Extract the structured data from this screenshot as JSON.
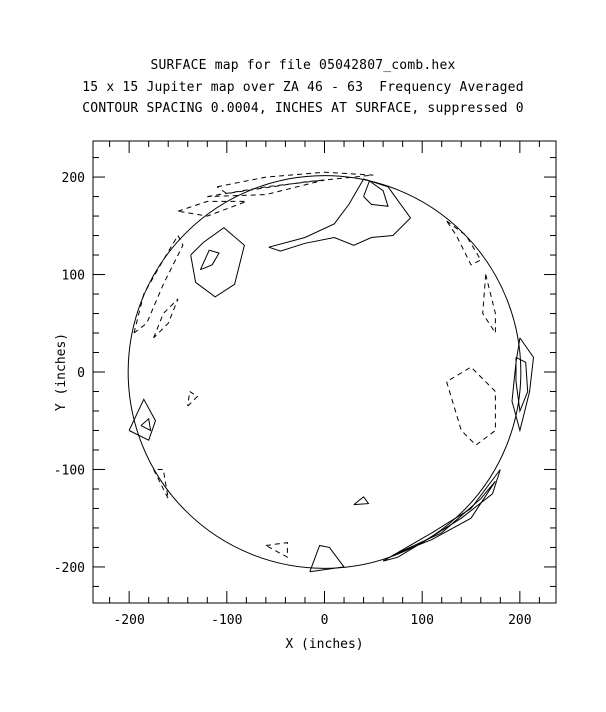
{
  "chart_data": {
    "type": "contour",
    "title": "SURFACE map for file 05042807_comb.hex",
    "subtitle": "15 x 15 Jupiter map over ZA 46 - 63  Frequency Averaged",
    "subtitle2": "CONTOUR SPACING 0.0004, INCHES AT SURFACE, suppressed 0",
    "xlabel": "X (inches)",
    "ylabel": "Y (inches)",
    "xlim": [
      -237,
      237
    ],
    "ylim": [
      -237,
      237
    ],
    "xticks": [
      -200,
      -100,
      0,
      100,
      200
    ],
    "yticks": [
      -200,
      -100,
      0,
      100,
      200
    ],
    "xtick_labels": [
      "-200",
      "-100",
      "0",
      "100",
      "200"
    ],
    "ytick_labels": [
      "-200",
      "-100",
      "0",
      "100",
      "200"
    ],
    "surface_radius": 201,
    "contour_spacing": 0.0004,
    "positive_contours": [
      [
        [
          -137,
          120
        ],
        [
          -124,
          133
        ],
        [
          -103,
          148
        ],
        [
          -82,
          130
        ],
        [
          -92,
          90
        ],
        [
          -112,
          77
        ],
        [
          -132,
          92
        ],
        [
          -137,
          120
        ]
      ],
      [
        [
          -127,
          105
        ],
        [
          -118,
          125
        ],
        [
          -108,
          122
        ],
        [
          -115,
          110
        ],
        [
          -127,
          105
        ]
      ],
      [
        [
          -57,
          128
        ],
        [
          -20,
          138
        ],
        [
          10,
          152
        ],
        [
          25,
          172
        ],
        [
          40,
          198
        ],
        [
          65,
          190
        ],
        [
          88,
          158
        ],
        [
          70,
          140
        ],
        [
          48,
          138
        ],
        [
          30,
          130
        ],
        [
          10,
          138
        ],
        [
          -20,
          132
        ],
        [
          -45,
          124
        ],
        [
          -57,
          128
        ]
      ],
      [
        [
          40,
          180
        ],
        [
          46,
          196
        ],
        [
          60,
          186
        ],
        [
          65,
          170
        ],
        [
          48,
          172
        ],
        [
          40,
          180
        ]
      ],
      [
        [
          200,
          35
        ],
        [
          214,
          15
        ],
        [
          210,
          -20
        ],
        [
          200,
          -60
        ],
        [
          192,
          -30
        ],
        [
          196,
          10
        ],
        [
          200,
          35
        ]
      ],
      [
        [
          196,
          15
        ],
        [
          206,
          10
        ],
        [
          208,
          -20
        ],
        [
          200,
          -40
        ],
        [
          196,
          -10
        ],
        [
          196,
          15
        ]
      ],
      [
        [
          -200,
          -60
        ],
        [
          -185,
          -28
        ],
        [
          -173,
          -50
        ],
        [
          -180,
          -70
        ],
        [
          -200,
          -60
        ]
      ],
      [
        [
          -188,
          -55
        ],
        [
          -180,
          -48
        ],
        [
          -178,
          -60
        ],
        [
          -188,
          -55
        ]
      ],
      [
        [
          -15,
          -205
        ],
        [
          -5,
          -178
        ],
        [
          5,
          -180
        ],
        [
          20,
          -200
        ],
        [
          -15,
          -205
        ]
      ],
      [
        [
          60,
          -194
        ],
        [
          110,
          -165
        ],
        [
          150,
          -140
        ],
        [
          180,
          -100
        ],
        [
          172,
          -125
        ],
        [
          140,
          -150
        ],
        [
          100,
          -175
        ],
        [
          75,
          -190
        ],
        [
          60,
          -194
        ]
      ],
      [
        [
          70,
          -188
        ],
        [
          120,
          -165
        ],
        [
          160,
          -130
        ],
        [
          175,
          -112
        ],
        [
          150,
          -150
        ],
        [
          110,
          -172
        ],
        [
          70,
          -188
        ]
      ],
      [
        [
          30,
          -136
        ],
        [
          40,
          -128
        ],
        [
          45,
          -135
        ],
        [
          30,
          -136
        ]
      ]
    ],
    "negative_contours": [
      [
        [
          -110,
          190
        ],
        [
          -60,
          200
        ],
        [
          0,
          205
        ],
        [
          50,
          202
        ],
        [
          -20,
          195
        ],
        [
          -100,
          183
        ],
        [
          -110,
          190
        ]
      ],
      [
        [
          -120,
          180
        ],
        [
          -60,
          190
        ],
        [
          0,
          197
        ],
        [
          -60,
          182
        ],
        [
          -120,
          180
        ]
      ],
      [
        [
          -150,
          165
        ],
        [
          -120,
          175
        ],
        [
          -80,
          175
        ],
        [
          -120,
          160
        ],
        [
          -150,
          165
        ]
      ],
      [
        [
          -195,
          40
        ],
        [
          -185,
          80
        ],
        [
          -165,
          115
        ],
        [
          -150,
          140
        ],
        [
          -145,
          130
        ],
        [
          -165,
          90
        ],
        [
          -182,
          50
        ],
        [
          -195,
          40
        ]
      ],
      [
        [
          -175,
          35
        ],
        [
          -165,
          60
        ],
        [
          -150,
          75
        ],
        [
          -160,
          50
        ],
        [
          -175,
          35
        ]
      ],
      [
        [
          125,
          155
        ],
        [
          145,
          140
        ],
        [
          160,
          115
        ],
        [
          150,
          110
        ],
        [
          135,
          140
        ],
        [
          125,
          155
        ]
      ],
      [
        [
          165,
          100
        ],
        [
          175,
          60
        ],
        [
          175,
          40
        ],
        [
          162,
          60
        ],
        [
          165,
          100
        ]
      ],
      [
        [
          125,
          -10
        ],
        [
          140,
          -60
        ],
        [
          155,
          -75
        ],
        [
          175,
          -60
        ],
        [
          175,
          -20
        ],
        [
          150,
          5
        ],
        [
          125,
          -10
        ]
      ],
      [
        [
          -140,
          -35
        ],
        [
          -130,
          -25
        ],
        [
          -138,
          -20
        ],
        [
          -140,
          -35
        ]
      ],
      [
        [
          -60,
          -178
        ],
        [
          -38,
          -175
        ],
        [
          -38,
          -190
        ],
        [
          -60,
          -178
        ]
      ],
      [
        [
          -175,
          -100
        ],
        [
          -160,
          -130
        ],
        [
          -165,
          -100
        ],
        [
          -175,
          -100
        ]
      ]
    ]
  }
}
